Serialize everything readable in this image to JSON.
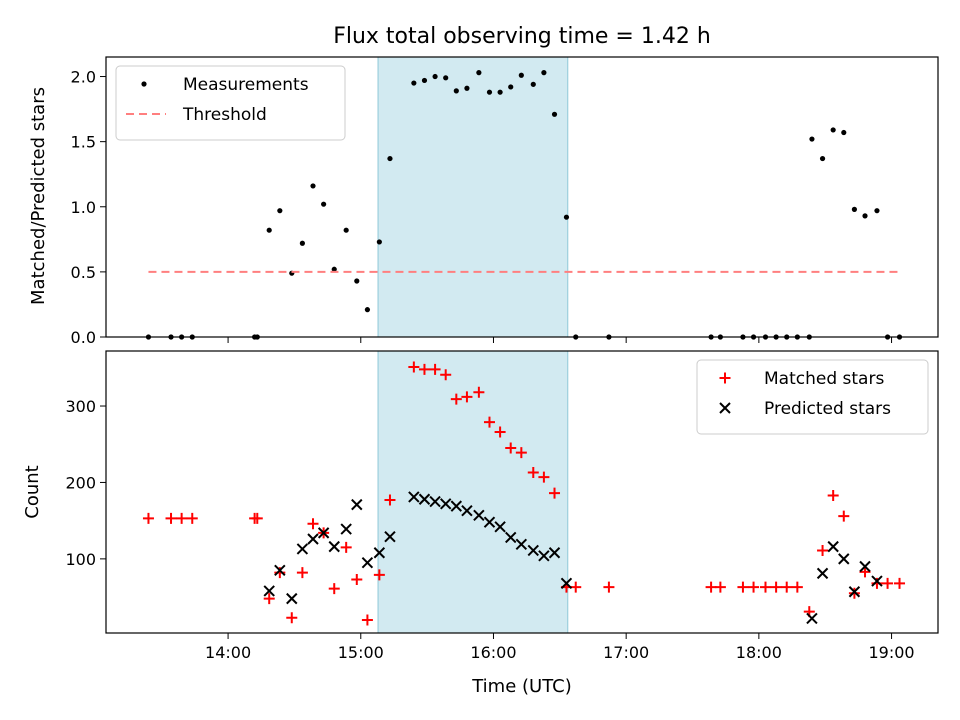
{
  "chart_data": {
    "title": "Flux total observing time = 1.42 h",
    "shared_x": {
      "label": "Time (UTC)",
      "unit": "hours",
      "range": [
        13.08,
        19.35
      ],
      "tick_values": [
        14,
        15,
        16,
        17,
        18,
        19
      ],
      "tick_labels": [
        "14:00",
        "15:00",
        "16:00",
        "17:00",
        "18:00",
        "19:00"
      ]
    },
    "highlight_span": {
      "x_start": 15.13,
      "x_end": 16.56,
      "color": "#add8e6"
    },
    "panels": [
      {
        "type": "scatter",
        "ylabel": "Matched/Predicted stars",
        "ylim": [
          0,
          2.15
        ],
        "yticks": [
          0.0,
          0.5,
          1.0,
          1.5,
          2.0
        ],
        "ytick_labels": [
          "0.0",
          "0.5",
          "1.0",
          "1.5",
          "2.0"
        ],
        "legend": {
          "position": "upper-left",
          "entries": [
            "Measurements",
            "Threshold"
          ]
        },
        "series": [
          {
            "name": "Measurements",
            "marker": "dot",
            "color": "#000000",
            "points": [
              [
                13.4,
                0.0
              ],
              [
                13.57,
                0.0
              ],
              [
                13.65,
                0.0
              ],
              [
                13.73,
                0.0
              ],
              [
                14.2,
                0.0
              ],
              [
                14.22,
                0.0
              ],
              [
                14.31,
                0.82
              ],
              [
                14.39,
                0.97
              ],
              [
                14.48,
                0.49
              ],
              [
                14.56,
                0.72
              ],
              [
                14.64,
                1.16
              ],
              [
                14.72,
                1.02
              ],
              [
                14.8,
                0.52
              ],
              [
                14.89,
                0.82
              ],
              [
                14.97,
                0.43
              ],
              [
                15.05,
                0.21
              ],
              [
                15.14,
                0.73
              ],
              [
                15.22,
                1.37
              ],
              [
                15.4,
                1.95
              ],
              [
                15.48,
                1.97
              ],
              [
                15.56,
                2.0
              ],
              [
                15.64,
                1.99
              ],
              [
                15.72,
                1.89
              ],
              [
                15.8,
                1.91
              ],
              [
                15.89,
                2.03
              ],
              [
                15.97,
                1.88
              ],
              [
                16.05,
                1.88
              ],
              [
                16.13,
                1.92
              ],
              [
                16.21,
                2.01
              ],
              [
                16.3,
                1.94
              ],
              [
                16.38,
                2.03
              ],
              [
                16.46,
                1.71
              ],
              [
                16.55,
                0.92
              ],
              [
                16.62,
                0.0
              ],
              [
                16.87,
                0.0
              ],
              [
                17.64,
                0.0
              ],
              [
                17.71,
                0.0
              ],
              [
                17.88,
                0.0
              ],
              [
                17.96,
                0.0
              ],
              [
                18.05,
                0.0
              ],
              [
                18.13,
                0.0
              ],
              [
                18.21,
                0.0
              ],
              [
                18.29,
                0.0
              ],
              [
                18.38,
                0.0
              ],
              [
                18.4,
                1.52
              ],
              [
                18.48,
                1.37
              ],
              [
                18.56,
                1.59
              ],
              [
                18.64,
                1.57
              ],
              [
                18.72,
                0.98
              ],
              [
                18.8,
                0.93
              ],
              [
                18.89,
                0.97
              ],
              [
                18.97,
                0.0
              ],
              [
                19.06,
                0.0
              ]
            ]
          },
          {
            "name": "Threshold",
            "style": "dashed-line",
            "color": "#ff7f7f",
            "points": [
              [
                13.4,
                0.5
              ],
              [
                19.06,
                0.5
              ]
            ]
          }
        ]
      },
      {
        "type": "scatter",
        "ylabel": "Count",
        "ylim": [
          3,
          372
        ],
        "yticks": [
          100,
          200,
          300
        ],
        "ytick_labels": [
          "100",
          "200",
          "300"
        ],
        "legend": {
          "position": "upper-right",
          "entries": [
            "Matched stars",
            "Predicted stars"
          ]
        },
        "series": [
          {
            "name": "Matched stars",
            "marker": "plus",
            "color": "#ff0000",
            "points": [
              [
                13.4,
                153
              ],
              [
                13.57,
                153
              ],
              [
                13.65,
                153
              ],
              [
                13.73,
                153
              ],
              [
                14.2,
                153
              ],
              [
                14.22,
                153
              ],
              [
                14.31,
                48
              ],
              [
                14.39,
                82
              ],
              [
                14.48,
                23
              ],
              [
                14.56,
                82
              ],
              [
                14.64,
                146
              ],
              [
                14.72,
                134
              ],
              [
                14.8,
                61
              ],
              [
                14.89,
                115
              ],
              [
                14.97,
                73
              ],
              [
                15.05,
                20
              ],
              [
                15.14,
                79
              ],
              [
                15.22,
                177
              ],
              [
                15.4,
                351
              ],
              [
                15.48,
                348
              ],
              [
                15.56,
                348
              ],
              [
                15.64,
                341
              ],
              [
                15.72,
                309
              ],
              [
                15.8,
                312
              ],
              [
                15.89,
                318
              ],
              [
                15.97,
                279
              ],
              [
                16.05,
                266
              ],
              [
                16.13,
                245
              ],
              [
                16.21,
                239
              ],
              [
                16.3,
                213
              ],
              [
                16.38,
                207
              ],
              [
                16.46,
                186
              ],
              [
                16.55,
                63
              ],
              [
                16.62,
                63
              ],
              [
                16.87,
                63
              ],
              [
                17.64,
                63
              ],
              [
                17.71,
                63
              ],
              [
                17.88,
                63
              ],
              [
                17.96,
                63
              ],
              [
                18.05,
                63
              ],
              [
                18.13,
                63
              ],
              [
                18.21,
                63
              ],
              [
                18.29,
                63
              ],
              [
                18.38,
                31
              ],
              [
                18.48,
                111
              ],
              [
                18.56,
                183
              ],
              [
                18.64,
                156
              ],
              [
                18.72,
                55
              ],
              [
                18.8,
                83
              ],
              [
                18.89,
                68
              ],
              [
                18.97,
                68
              ],
              [
                19.06,
                68
              ]
            ]
          },
          {
            "name": "Predicted stars",
            "marker": "x",
            "color": "#000000",
            "points": [
              [
                14.31,
                58
              ],
              [
                14.39,
                85
              ],
              [
                14.48,
                48
              ],
              [
                14.56,
                113
              ],
              [
                14.64,
                126
              ],
              [
                14.72,
                134
              ],
              [
                14.8,
                116
              ],
              [
                14.89,
                139
              ],
              [
                14.97,
                171
              ],
              [
                15.05,
                95
              ],
              [
                15.14,
                108
              ],
              [
                15.22,
                129
              ],
              [
                15.4,
                181
              ],
              [
                15.48,
                178
              ],
              [
                15.56,
                175
              ],
              [
                15.64,
                172
              ],
              [
                15.72,
                169
              ],
              [
                15.8,
                163
              ],
              [
                15.89,
                157
              ],
              [
                15.97,
                148
              ],
              [
                16.05,
                142
              ],
              [
                16.13,
                128
              ],
              [
                16.21,
                119
              ],
              [
                16.3,
                111
              ],
              [
                16.38,
                104
              ],
              [
                16.46,
                108
              ],
              [
                16.55,
                68
              ],
              [
                18.4,
                22
              ],
              [
                18.48,
                81
              ],
              [
                18.56,
                116
              ],
              [
                18.64,
                100
              ],
              [
                18.72,
                57
              ],
              [
                18.8,
                90
              ],
              [
                18.89,
                71
              ]
            ]
          }
        ]
      }
    ]
  }
}
